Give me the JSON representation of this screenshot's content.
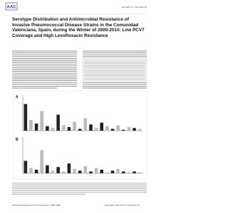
{
  "header": {
    "logo": "AAC",
    "section": "LETTER TO THE EDITOR"
  },
  "title": "Serotype Distribution and Antimicrobial Resistance of Invasive Pneumococcal Disease Strains in the Comunidad Valenciana, Spain, during the Winter of 2009-2010: Low PCV7 Coverage and High Levofloxacin Resistance",
  "figure": {
    "panels": [
      {
        "label": "A",
        "ylim": [
          0,
          40
        ],
        "values": [
          30,
          12,
          8,
          22,
          5,
          3,
          18,
          6,
          4,
          10,
          2,
          14,
          7,
          3,
          9,
          5,
          2,
          6,
          1,
          4,
          3,
          2
        ]
      },
      {
        "label": "B",
        "ylim": [
          0,
          40
        ],
        "values": [
          14,
          6,
          4,
          26,
          9,
          3,
          7,
          2,
          11,
          5,
          3,
          8,
          2,
          6,
          4,
          1,
          3,
          5,
          2,
          1,
          2,
          1
        ]
      }
    ]
  },
  "footer": {
    "journal": "Antimicrobial Agents and Chemotherapy p. 4986–4988",
    "issue": "September 2011 Volume 55 Number 10"
  }
}
